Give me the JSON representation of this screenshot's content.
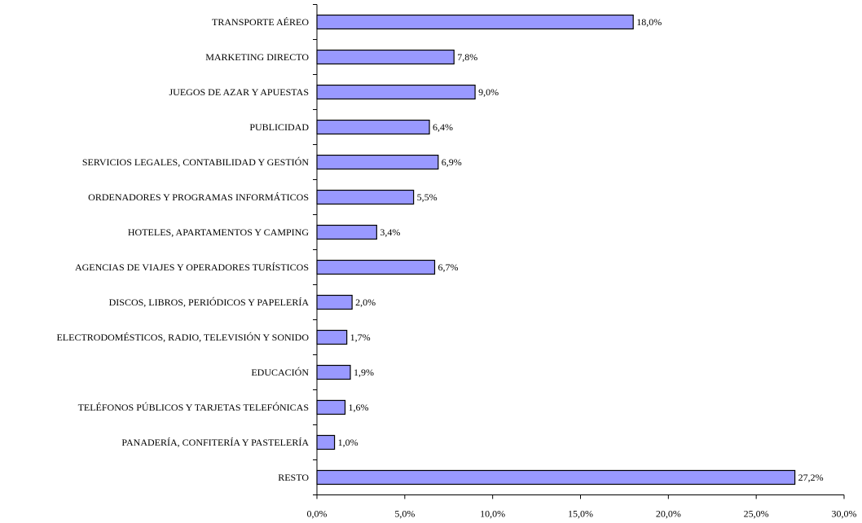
{
  "chart_data": {
    "type": "barh",
    "categories": [
      "TRANSPORTE AÉREO",
      "MARKETING DIRECTO",
      "JUEGOS DE AZAR Y APUESTAS",
      "PUBLICIDAD",
      "SERVICIOS LEGALES, CONTABILIDAD Y GESTIÓN",
      "ORDENADORES Y PROGRAMAS INFORMÁTICOS",
      "HOTELES, APARTAMENTOS Y CAMPING",
      "AGENCIAS DE VIAJES Y OPERADORES TURÍSTICOS",
      "DISCOS, LIBROS, PERIÓDICOS Y PAPELERÍA",
      "ELECTRODOMÉSTICOS, RADIO, TELEVISIÓN Y SONIDO",
      "EDUCACIÓN",
      "TELÉFONOS PÚBLICOS Y TARJETAS TELEFÓNICAS",
      "PANADERÍA, CONFITERÍA Y PASTELERÍA",
      "RESTO"
    ],
    "values": [
      18.0,
      7.8,
      9.0,
      6.4,
      6.9,
      5.5,
      3.4,
      6.7,
      2.0,
      1.7,
      1.9,
      1.6,
      1.0,
      27.2
    ],
    "value_labels": [
      "18,0%",
      "7,8%",
      "9,0%",
      "6,4%",
      "6,9%",
      "5,5%",
      "3,4%",
      "6,7%",
      "2,0%",
      "1,7%",
      "1,9%",
      "1,6%",
      "1,0%",
      "27,2%"
    ],
    "color": "#9999ff",
    "xlim": [
      0,
      30
    ],
    "xticks": [
      {
        "value": 0,
        "label": "0,0%"
      },
      {
        "value": 5,
        "label": "5,0%"
      },
      {
        "value": 10,
        "label": "10,0%"
      },
      {
        "value": 15,
        "label": "15,0%"
      },
      {
        "value": 20,
        "label": "20,0%"
      },
      {
        "value": 25,
        "label": "25,0%"
      },
      {
        "value": 30,
        "label": "30,0%"
      }
    ],
    "grid": false
  }
}
